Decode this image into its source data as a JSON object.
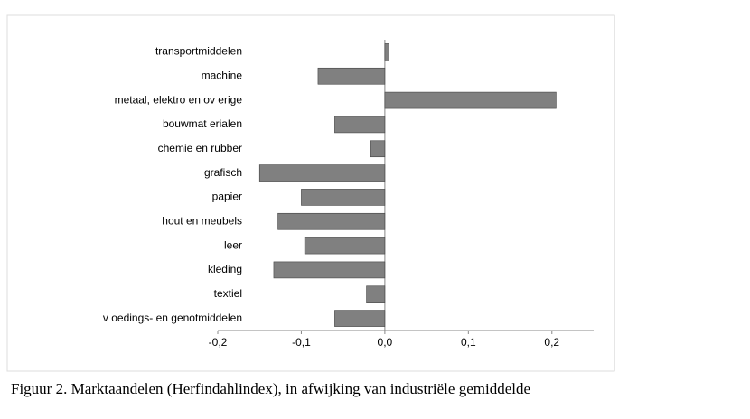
{
  "chart_data": {
    "type": "bar",
    "orientation": "horizontal",
    "caption": "Figuur 2. Marktaandelen (Herfindahlindex), in afwijking van industriële gemiddelde",
    "categories": [
      "transportmiddelen",
      "machine",
      "metaal, elektro en ov erige",
      "bouwmat erialen",
      "chemie en rubber",
      "grafisch",
      "papier",
      "hout en meubels",
      "leer",
      "kleding",
      "textiel",
      "v oedings- en genotmiddelen"
    ],
    "values": [
      0.005,
      -0.08,
      0.205,
      -0.06,
      -0.017,
      -0.15,
      -0.1,
      -0.128,
      -0.096,
      -0.133,
      -0.022,
      -0.06
    ],
    "color": "#808080",
    "xlim": [
      -0.2,
      0.25
    ],
    "xticks": [
      {
        "value": -0.2,
        "label": "-0,2"
      },
      {
        "value": -0.1,
        "label": "-0,1"
      },
      {
        "value": 0,
        "label": "0,0"
      },
      {
        "value": 0.1,
        "label": "0,1"
      },
      {
        "value": 0.2,
        "label": "0,2"
      }
    ]
  }
}
